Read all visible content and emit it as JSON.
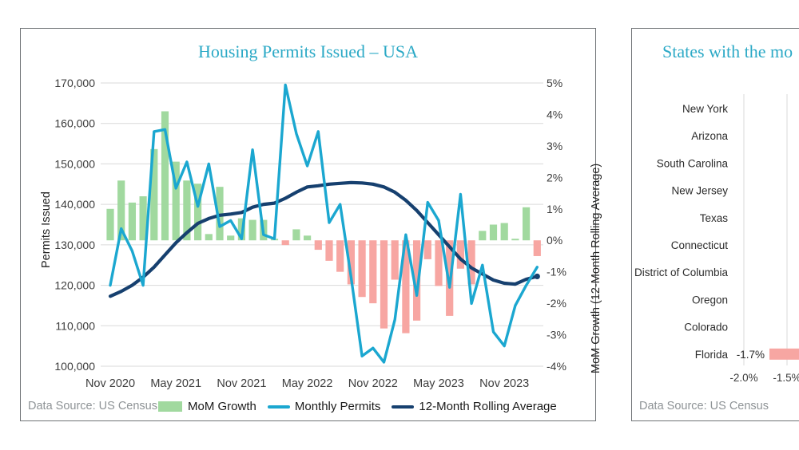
{
  "colors": {
    "title_teal": "#2ba9c6",
    "bar_positive_green": "#a1d99f",
    "bar_negative_pink": "#f7a6a2",
    "line_cyan": "#1ba7d0",
    "line_navy": "#16406f",
    "gridline": "#dadada",
    "tick_text": "#3c3c3c",
    "source_text": "#8e9396"
  },
  "chart_data": [
    {
      "type": "bar",
      "subtype": "combo-bar-line-dual-axis",
      "title": "Housing Permits Issued – USA",
      "data_source": "Data Source: US Census",
      "x_tick_labels": [
        "Nov 2020",
        "May 2021",
        "Nov 2021",
        "May 2022",
        "Nov 2022",
        "May 2023",
        "Nov 2023"
      ],
      "y_left": {
        "title": "Permits Issued",
        "min": 100000,
        "max": 170000,
        "step": 10000
      },
      "y_right": {
        "title": "MoM Growth (12-Month Rolling Average)",
        "min": -4,
        "max": 5,
        "step": 1,
        "format": "percent"
      },
      "grid": true,
      "legend_position": "bottom",
      "categories": [
        "Nov 2020",
        "Dec 2020",
        "Jan 2021",
        "Feb 2021",
        "Mar 2021",
        "Apr 2021",
        "May 2021",
        "Jun 2021",
        "Jul 2021",
        "Aug 2021",
        "Sep 2021",
        "Oct 2021",
        "Nov 2021",
        "Dec 2021",
        "Jan 2022",
        "Feb 2022",
        "Mar 2022",
        "Apr 2022",
        "May 2022",
        "Jun 2022",
        "Jul 2022",
        "Aug 2022",
        "Sep 2022",
        "Oct 2022",
        "Nov 2022",
        "Dec 2022",
        "Jan 2023",
        "Feb 2023",
        "Mar 2023",
        "Apr 2023",
        "May 2023",
        "Jun 2023",
        "Jul 2023",
        "Aug 2023",
        "Sep 2023",
        "Oct 2023",
        "Nov 2023",
        "Dec 2023",
        "Jan 2024",
        "Feb 2024"
      ],
      "series": [
        {
          "name": "MoM Growth",
          "type": "bar",
          "axis": "right",
          "unit": "%",
          "values": [
            1.0,
            1.9,
            1.2,
            1.4,
            2.9,
            4.1,
            2.5,
            1.9,
            1.8,
            0.2,
            1.7,
            0.15,
            0.7,
            0.65,
            0.65,
            0.05,
            -0.15,
            0.35,
            0.15,
            -0.3,
            -0.65,
            -1.0,
            -1.4,
            -1.8,
            -2.0,
            -2.8,
            -1.25,
            -2.95,
            -2.55,
            -0.6,
            -1.45,
            -2.4,
            -0.9,
            -1.4,
            0.3,
            0.5,
            0.55,
            0.05,
            1.05,
            -0.5
          ]
        },
        {
          "name": "Monthly Permits",
          "type": "line",
          "axis": "left",
          "unit": "permits",
          "values": [
            120000,
            134000,
            128500,
            120000,
            158000,
            158500,
            144000,
            150500,
            139500,
            150000,
            134500,
            136000,
            131500,
            153500,
            132500,
            131500,
            169500,
            157500,
            149500,
            158000,
            135500,
            140000,
            122000,
            102500,
            104500,
            101000,
            111500,
            132500,
            117500,
            140500,
            136000,
            119500,
            142500,
            115500,
            125000,
            108500,
            105000,
            115000,
            120000,
            124500
          ]
        },
        {
          "name": "12-Month Rolling Average",
          "type": "line",
          "axis": "left",
          "unit": "permits",
          "values": [
            117300,
            118500,
            120000,
            122000,
            124500,
            127500,
            130500,
            133000,
            135300,
            136500,
            137300,
            137600,
            138000,
            139300,
            140000,
            140300,
            141500,
            143000,
            144300,
            144600,
            145000,
            145200,
            145400,
            145300,
            145000,
            144300,
            143000,
            141000,
            138500,
            135500,
            132500,
            129500,
            126500,
            124300,
            122800,
            121300,
            120500,
            120300,
            121500,
            122200
          ]
        }
      ]
    },
    {
      "type": "bar",
      "subtype": "horizontal-bar-partially-cropped",
      "title": "States with the mo",
      "data_source": "Data Source: US Census",
      "categories": [
        "New York",
        "Arizona",
        "South Carolina",
        "New Jersey",
        "Texas",
        "Connecticut",
        "District of Columbia",
        "Oregon",
        "Colorado",
        "Florida"
      ],
      "visible_values": {
        "Florida": -1.7
      },
      "florida_value_label": "-1.7%",
      "x_tick_labels": [
        "-2.0%",
        "-1.5%"
      ],
      "x_ticks_visible": [
        -2.0,
        -1.5
      ],
      "grid": true
    }
  ]
}
